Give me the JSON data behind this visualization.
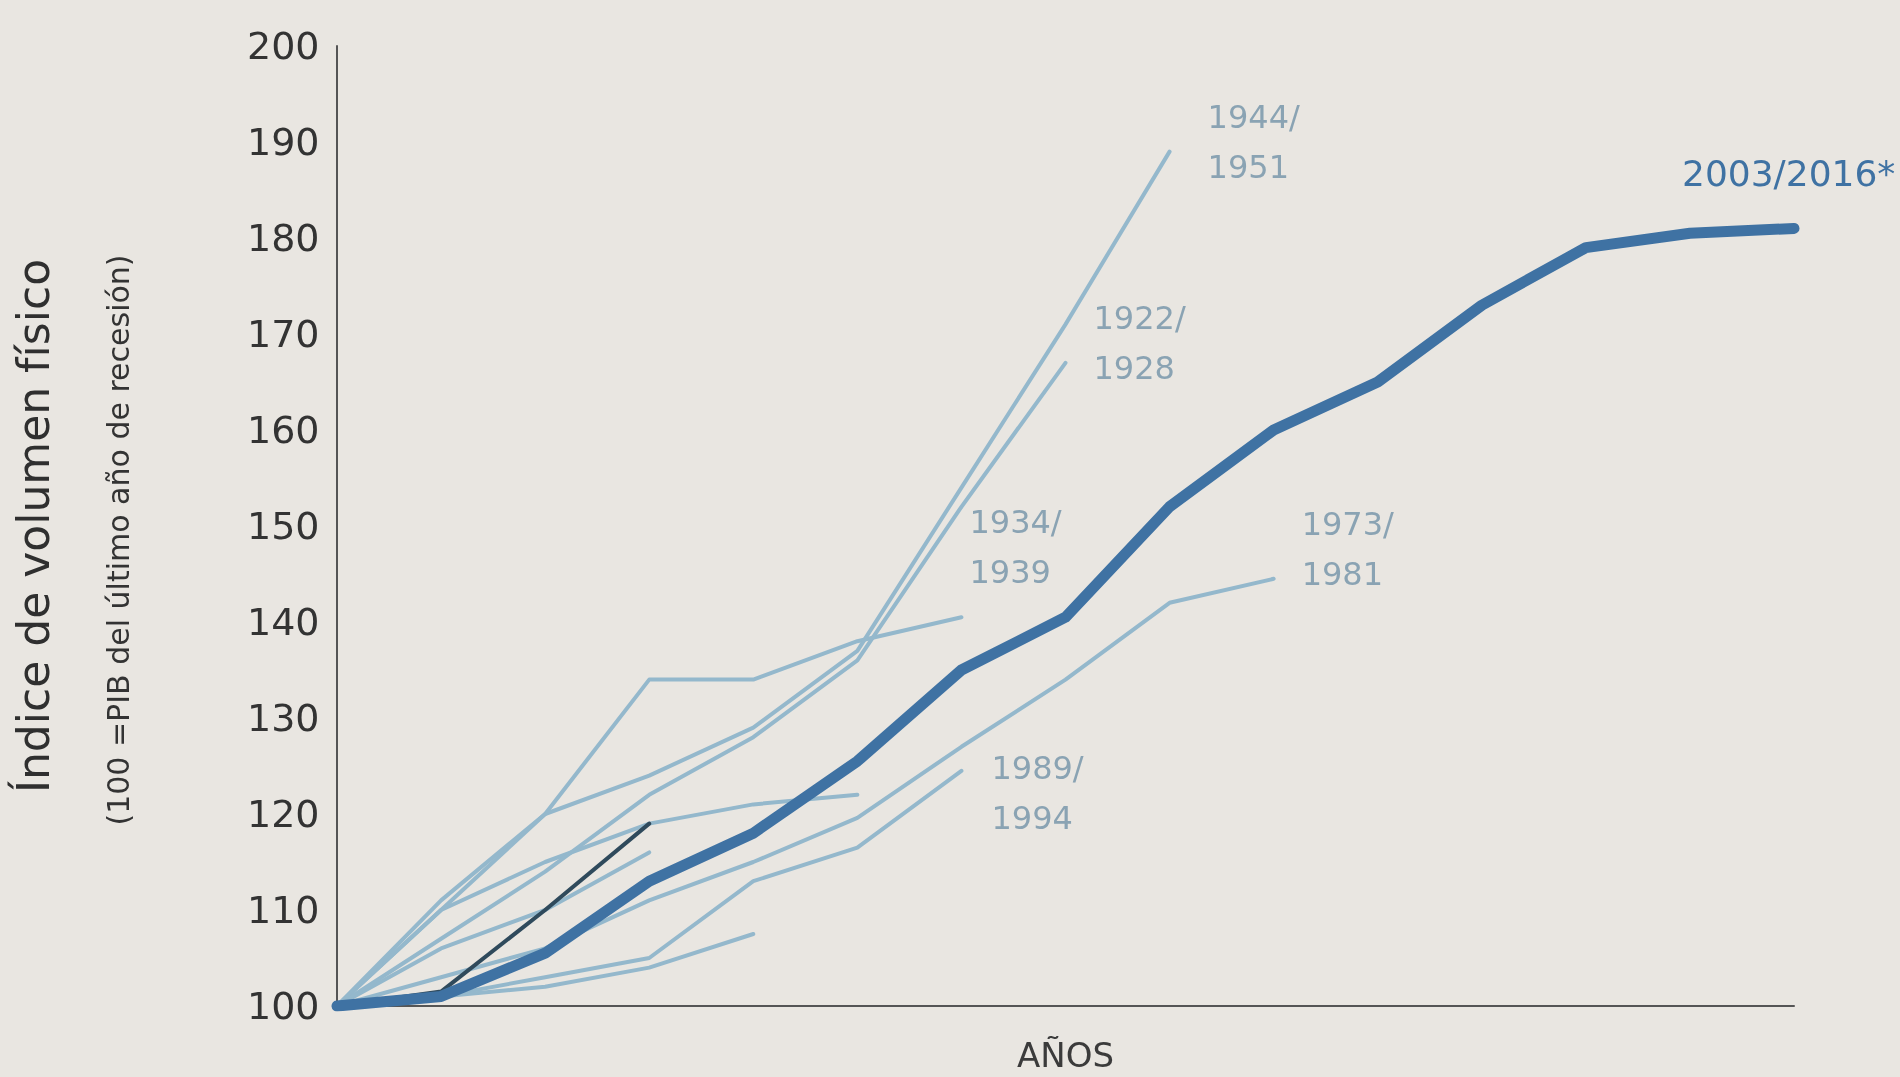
{
  "chart_data": {
    "type": "line",
    "xlabel": "AÑOS",
    "ylabel": "Índice de volumen físico",
    "annotations": [
      "(100 =PIB del último año de recesión)"
    ],
    "categories": [
      null,
      null,
      null,
      null,
      null,
      null,
      null,
      null,
      null,
      null,
      null,
      null,
      null,
      null,
      null
    ],
    "ylim": [
      100,
      200
    ],
    "yticks": [
      100,
      110,
      120,
      130,
      140,
      150,
      160,
      170,
      180,
      190,
      200
    ],
    "grid": false,
    "tick_labels": "y",
    "marker": "none",
    "line_style": "solid",
    "series": [
      {
        "color": "#94b8cc",
        "values": [
          100,
          103,
          106,
          111,
          115,
          119.6,
          127,
          134,
          142,
          144.5,
          null,
          null,
          null,
          null,
          null
        ],
        "name": "1973/1981"
      },
      {
        "color": "#94b8cc",
        "values": [
          100,
          101,
          103,
          105,
          113,
          116.5,
          124.5,
          null,
          null,
          null,
          null,
          null,
          null,
          null,
          null
        ],
        "name": "1989/1994"
      },
      {
        "color": "#94b8cc",
        "values": [
          100,
          101,
          102,
          104,
          107.5,
          null,
          null,
          null,
          null,
          null,
          null,
          null,
          null,
          null,
          null
        ],
        "name": null
      },
      {
        "color": "#94b8cc",
        "values": [
          100,
          106,
          110,
          116,
          null,
          null,
          null,
          null,
          null,
          null,
          null,
          null,
          null,
          null,
          null
        ],
        "name": null
      },
      {
        "color": "#94b8cc",
        "values": [
          100,
          110,
          115,
          119,
          121,
          122,
          null,
          null,
          null,
          null,
          null,
          null,
          null,
          null,
          null
        ],
        "name": null
      },
      {
        "color": "#94b8cc",
        "values": [
          100,
          110,
          120,
          134,
          134,
          138,
          140.5,
          null,
          null,
          null,
          null,
          null,
          null,
          null,
          null
        ],
        "name": "1934/1939"
      },
      {
        "color": "#94b8cc",
        "values": [
          100,
          107,
          114,
          122,
          128,
          136,
          152,
          167,
          null,
          null,
          null,
          null,
          null,
          null,
          null
        ],
        "name": "1922/1928"
      },
      {
        "color": "#94b8cc",
        "values": [
          100,
          111,
          120,
          124,
          129,
          137,
          154,
          171,
          189,
          null,
          null,
          null,
          null,
          null,
          null
        ],
        "name": "1944/1951"
      },
      {
        "color": "#2f4a5c",
        "values": [
          100,
          101.5,
          110,
          119,
          null,
          null,
          null,
          null,
          null,
          null,
          null,
          null,
          null,
          null,
          null
        ],
        "name": null
      },
      {
        "color": "#3f72a3",
        "values": [
          100,
          101,
          105.5,
          113,
          118,
          125.5,
          135,
          140.5,
          152,
          160,
          165,
          173,
          179,
          180.5,
          181
        ],
        "name": "2003/2016*"
      }
    ]
  }
}
